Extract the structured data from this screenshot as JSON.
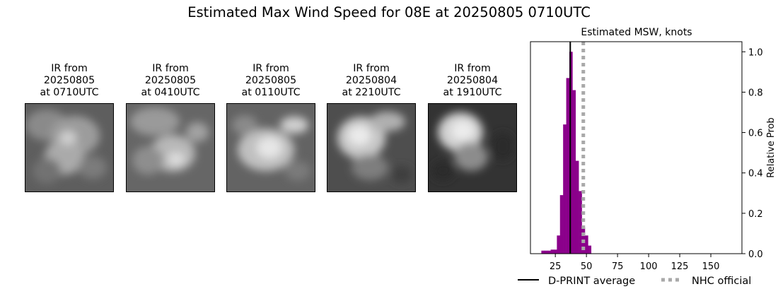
{
  "title": "Estimated Max Wind Speed for 08E at 20250805 0710UTC",
  "ir_panels": [
    {
      "line1": "IR from",
      "date": "20250805",
      "time": "at 0710UTC"
    },
    {
      "line1": "IR from",
      "date": "20250805",
      "time": "at 0410UTC"
    },
    {
      "line1": "IR from",
      "date": "20250805",
      "time": "at 0110UTC"
    },
    {
      "line1": "IR from",
      "date": "20250804",
      "time": "at 2210UTC"
    },
    {
      "line1": "IR from",
      "date": "20250804",
      "time": "at 1910UTC"
    }
  ],
  "chart_data": {
    "type": "bar",
    "title": "Estimated MSW, knots",
    "xlabel": "",
    "ylabel": "Relative Prob",
    "xlim": [
      5,
      175
    ],
    "ylim": [
      0,
      1.05
    ],
    "xticks": [
      25,
      50,
      75,
      100,
      125,
      150
    ],
    "yticks": [
      0.0,
      0.2,
      0.4,
      0.6,
      0.8,
      1.0
    ],
    "bin_width": 2.5,
    "bars": [
      {
        "x": 15,
        "value": 0.015
      },
      {
        "x": 17.5,
        "value": 0.015
      },
      {
        "x": 20,
        "value": 0.015
      },
      {
        "x": 22.5,
        "value": 0.02
      },
      {
        "x": 25,
        "value": 0.02
      },
      {
        "x": 27.5,
        "value": 0.09
      },
      {
        "x": 30,
        "value": 0.29
      },
      {
        "x": 32.5,
        "value": 0.64
      },
      {
        "x": 35,
        "value": 0.87
      },
      {
        "x": 37.5,
        "value": 1.0
      },
      {
        "x": 40,
        "value": 0.81
      },
      {
        "x": 42.5,
        "value": 0.46
      },
      {
        "x": 45,
        "value": 0.31
      },
      {
        "x": 47.5,
        "value": 0.13
      },
      {
        "x": 50,
        "value": 0.09
      },
      {
        "x": 52.5,
        "value": 0.04
      }
    ],
    "bar_color": "#8b008b",
    "dprint_average": 37,
    "nhc_official": 47.5,
    "legend": [
      {
        "label": "D-PRINT average",
        "style": "solid",
        "color": "#000000"
      },
      {
        "label": "NHC official",
        "style": "dotted",
        "color": "#a9a9a9"
      }
    ],
    "legend_placement": "bottom",
    "grid": false
  }
}
